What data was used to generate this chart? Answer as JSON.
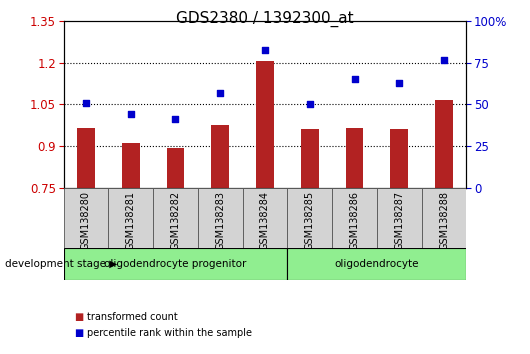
{
  "title": "GDS2380 / 1392300_at",
  "categories": [
    "GSM138280",
    "GSM138281",
    "GSM138282",
    "GSM138283",
    "GSM138284",
    "GSM138285",
    "GSM138286",
    "GSM138287",
    "GSM138288"
  ],
  "red_values": [
    0.965,
    0.91,
    0.893,
    0.975,
    1.205,
    0.96,
    0.965,
    0.962,
    1.065
  ],
  "blue_values_pct": [
    51,
    44,
    41,
    57,
    83,
    50,
    65,
    63,
    77
  ],
  "ylim_left": [
    0.75,
    1.35
  ],
  "ylim_right": [
    0,
    100
  ],
  "yticks_left": [
    0.75,
    0.9,
    1.05,
    1.2,
    1.35
  ],
  "yticks_right": [
    0,
    25,
    50,
    75,
    100
  ],
  "ytick_labels_left": [
    "0.75",
    "0.9",
    "1.05",
    "1.2",
    "1.35"
  ],
  "ytick_labels_right": [
    "0",
    "25",
    "50",
    "75",
    "100%"
  ],
  "group1_label": "oligodendrocyte progenitor",
  "group1_count": 5,
  "group2_label": "oligodendrocyte",
  "group2_count": 4,
  "group_color": "#90EE90",
  "bar_color": "#B22222",
  "dot_color": "#0000CC",
  "background_color": "#ffffff",
  "grid_color": "black",
  "dev_stage_label": "development stage",
  "legend_red": "transformed count",
  "legend_blue": "percentile rank within the sample",
  "title_fontsize": 11,
  "axis_fontsize": 8.5,
  "label_fontsize": 7.5,
  "cat_fontsize": 7,
  "bar_width": 0.4
}
